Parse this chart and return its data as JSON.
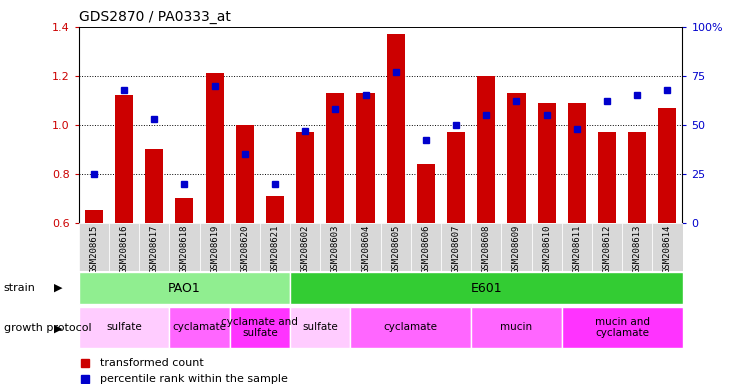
{
  "title": "GDS2870 / PA0333_at",
  "samples": [
    "GSM208615",
    "GSM208616",
    "GSM208617",
    "GSM208618",
    "GSM208619",
    "GSM208620",
    "GSM208621",
    "GSM208602",
    "GSM208603",
    "GSM208604",
    "GSM208605",
    "GSM208606",
    "GSM208607",
    "GSM208608",
    "GSM208609",
    "GSM208610",
    "GSM208611",
    "GSM208612",
    "GSM208613",
    "GSM208614"
  ],
  "red_values": [
    0.65,
    1.12,
    0.9,
    0.7,
    1.21,
    1.0,
    0.71,
    0.97,
    1.13,
    1.13,
    1.37,
    0.84,
    0.97,
    1.2,
    1.13,
    1.09,
    1.09,
    0.97,
    0.97,
    1.07
  ],
  "blue_values": [
    25,
    68,
    53,
    20,
    70,
    35,
    20,
    47,
    58,
    65,
    77,
    42,
    50,
    55,
    62,
    55,
    48,
    62,
    65,
    68
  ],
  "ylim_left": [
    0.6,
    1.4
  ],
  "ylim_right": [
    0,
    100
  ],
  "yticks_left": [
    0.6,
    0.8,
    1.0,
    1.2,
    1.4
  ],
  "yticks_right": [
    0,
    25,
    50,
    75,
    100
  ],
  "ytick_labels_right": [
    "0",
    "25",
    "50",
    "75",
    "100%"
  ],
  "strain_groups": [
    {
      "label": "PAO1",
      "start": 0,
      "end": 7,
      "color": "#90EE90"
    },
    {
      "label": "E601",
      "start": 7,
      "end": 20,
      "color": "#33CC33"
    }
  ],
  "protocol_groups": [
    {
      "label": "sulfate",
      "start": 0,
      "end": 3,
      "color": "#FFCCFF"
    },
    {
      "label": "cyclamate",
      "start": 3,
      "end": 5,
      "color": "#FF66FF"
    },
    {
      "label": "cyclamate and\nsulfate",
      "start": 5,
      "end": 7,
      "color": "#FF33FF"
    },
    {
      "label": "sulfate",
      "start": 7,
      "end": 9,
      "color": "#FFCCFF"
    },
    {
      "label": "cyclamate",
      "start": 9,
      "end": 13,
      "color": "#FF66FF"
    },
    {
      "label": "mucin",
      "start": 13,
      "end": 16,
      "color": "#FF66FF"
    },
    {
      "label": "mucin and\ncyclamate",
      "start": 16,
      "end": 20,
      "color": "#FF33FF"
    }
  ],
  "bar_color": "#CC0000",
  "dot_color": "#0000CC",
  "xlabel_color": "#CC0000",
  "ylabel_right_color": "#0000CC"
}
